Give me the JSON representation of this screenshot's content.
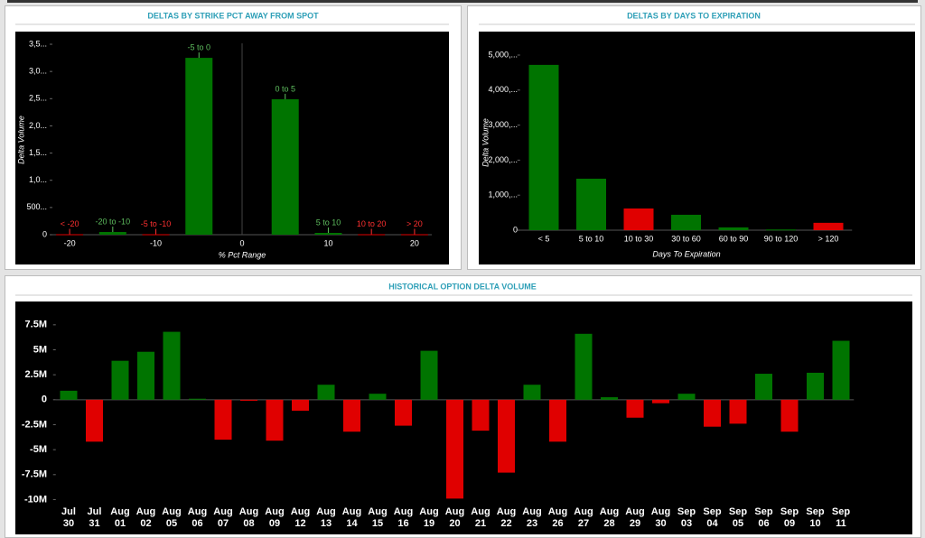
{
  "chart_data": [
    {
      "type": "bar",
      "title": "DELTAS BY STRIKE PCT AWAY FROM SPOT",
      "x_label": "% Pct Range",
      "y_label": "Delta Volume",
      "categories": [
        "< -20",
        "-20 to -10",
        "-5 to -10",
        "-5 to 0",
        "0 to 5",
        "5 to 10",
        "10 to 20",
        "> 20"
      ],
      "x": [
        -20,
        -15,
        -10,
        -5,
        5,
        10,
        15,
        20
      ],
      "values": [
        8000,
        50000,
        8000,
        3250000,
        2490000,
        33000,
        8000,
        8000
      ],
      "colors": [
        "#e00000",
        "#007400",
        "#e00000",
        "#007400",
        "#007400",
        "#007400",
        "#e00000",
        "#e00000"
      ],
      "label_colors": [
        "#ff3030",
        "#5fbf5f",
        "#ff3030",
        "#5fbf5f",
        "#5fbf5f",
        "#5fbf5f",
        "#ff3030",
        "#ff3030"
      ],
      "xlim": [
        -22,
        22
      ],
      "xticks": [
        -20,
        -10,
        0,
        10,
        20
      ],
      "ylim": [
        0,
        3600000
      ],
      "yticks": [
        0,
        {
          "value": 500000,
          "label": "500..."
        },
        {
          "value": 1000000,
          "label": "1,0..."
        },
        {
          "value": 1500000,
          "label": "1,5..."
        },
        {
          "value": 2000000,
          "label": "2,0..."
        },
        {
          "value": 2500000,
          "label": "2,5..."
        },
        {
          "value": 3000000,
          "label": "3,0..."
        },
        {
          "value": 3500000,
          "label": "3,5..."
        }
      ]
    },
    {
      "type": "bar",
      "title": "DELTAS BY DAYS TO EXPIRATION",
      "x_label": "Days To Expiration",
      "y_label": "Delta Volume",
      "categories": [
        "< 5",
        "5 to 10",
        "10 to 30",
        "30 to 60",
        "60 to 90",
        "90 to 120",
        "> 120"
      ],
      "values": [
        4720000,
        1470000,
        620000,
        440000,
        80000,
        20000,
        210000
      ],
      "colors": [
        "#007400",
        "#007400",
        "#e00000",
        "#007400",
        "#007400",
        "#007400",
        "#e00000"
      ],
      "ylim": [
        0,
        5400000
      ],
      "yticks": [
        0,
        {
          "value": 1000000,
          "label": "1,000,..."
        },
        {
          "value": 2000000,
          "label": "2,000,..."
        },
        {
          "value": 3000000,
          "label": "3,000,..."
        },
        {
          "value": 4000000,
          "label": "4,000,..."
        },
        {
          "value": 5000000,
          "label": "5,000,..."
        }
      ]
    },
    {
      "type": "bar",
      "title": "HISTORICAL OPTION DELTA VOLUME",
      "categories": [
        [
          "Jul",
          "30"
        ],
        [
          "Jul",
          "31"
        ],
        [
          "Aug",
          "01"
        ],
        [
          "Aug",
          "02"
        ],
        [
          "Aug",
          "05"
        ],
        [
          "Aug",
          "06"
        ],
        [
          "Aug",
          "07"
        ],
        [
          "Aug",
          "08"
        ],
        [
          "Aug",
          "09"
        ],
        [
          "Aug",
          "12"
        ],
        [
          "Aug",
          "13"
        ],
        [
          "Aug",
          "14"
        ],
        [
          "Aug",
          "15"
        ],
        [
          "Aug",
          "16"
        ],
        [
          "Aug",
          "19"
        ],
        [
          "Aug",
          "20"
        ],
        [
          "Aug",
          "21"
        ],
        [
          "Aug",
          "22"
        ],
        [
          "Aug",
          "23"
        ],
        [
          "Aug",
          "26"
        ],
        [
          "Aug",
          "27"
        ],
        [
          "Aug",
          "28"
        ],
        [
          "Aug",
          "29"
        ],
        [
          "Aug",
          "30"
        ],
        [
          "Sep",
          "03"
        ],
        [
          "Sep",
          "04"
        ],
        [
          "Sep",
          "05"
        ],
        [
          "Sep",
          "06"
        ],
        [
          "Sep",
          "09"
        ],
        [
          "Sep",
          "10"
        ],
        [
          "Sep",
          "11"
        ]
      ],
      "values": [
        900000,
        -4200000,
        3900000,
        4800000,
        6800000,
        100000,
        -4000000,
        -100000,
        -4100000,
        -1100000,
        1500000,
        -3200000,
        600000,
        -2600000,
        4900000,
        -9900000,
        -3100000,
        -7300000,
        1500000,
        -4200000,
        6600000,
        250000,
        -1800000,
        -350000,
        600000,
        -2700000,
        -2400000,
        2600000,
        -3200000,
        2700000,
        5900000
      ],
      "positive_color": "#007400",
      "negative_color": "#e00000",
      "ylim": [
        -10500000,
        8750000
      ],
      "yticks": [
        {
          "value": -10000000,
          "label": "-10M"
        },
        {
          "value": -7500000,
          "label": "-7.5M"
        },
        {
          "value": -5000000,
          "label": "-5M"
        },
        {
          "value": -2500000,
          "label": "-2.5M"
        },
        0,
        {
          "value": 2500000,
          "label": "2.5M"
        },
        {
          "value": 5000000,
          "label": "5M"
        },
        {
          "value": 7500000,
          "label": "7.5M"
        }
      ]
    }
  ]
}
